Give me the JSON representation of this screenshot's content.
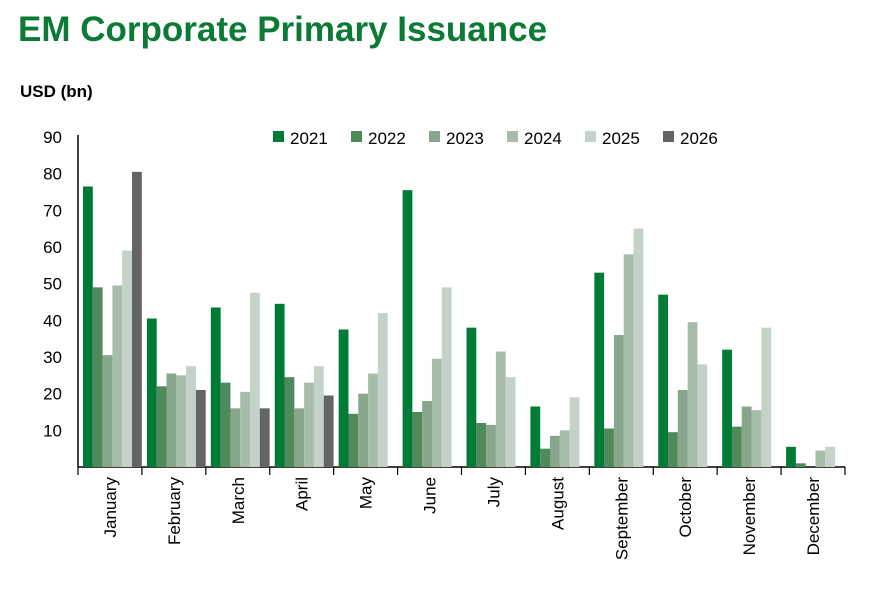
{
  "chart_data": {
    "type": "bar",
    "title": "EM Corporate Primary Issuance",
    "ylabel": "USD (bn)",
    "xlabel": "",
    "ylim": [
      0,
      90
    ],
    "yticks": [
      10,
      20,
      30,
      40,
      50,
      60,
      70,
      80,
      90
    ],
    "grid": false,
    "legend": "top",
    "categories": [
      "January",
      "February",
      "March",
      "April",
      "May",
      "June",
      "July",
      "August",
      "September",
      "October",
      "November",
      "December"
    ],
    "series": [
      {
        "name": "2021",
        "color": "#007A37",
        "values": [
          76.5,
          40.5,
          43.5,
          44.5,
          37.5,
          75.5,
          38,
          16.5,
          53,
          47,
          32,
          5.5
        ]
      },
      {
        "name": "2022",
        "color": "#4E8A5C",
        "values": [
          49,
          22,
          23,
          24.5,
          14.5,
          15,
          12,
          5,
          10.5,
          9.5,
          11,
          1
        ]
      },
      {
        "name": "2023",
        "color": "#87A68B",
        "values": [
          30.5,
          25.5,
          16,
          16,
          20,
          18,
          11.5,
          8.5,
          36,
          21,
          16.5,
          0
        ]
      },
      {
        "name": "2024",
        "color": "#A8BCAA",
        "values": [
          49.5,
          25,
          20.5,
          23,
          25.5,
          29.5,
          31.5,
          10,
          58,
          39.5,
          15.5,
          4.5
        ]
      },
      {
        "name": "2025",
        "color": "#C5D2C7",
        "values": [
          59,
          27.5,
          47.5,
          27.5,
          42,
          49,
          24.5,
          19,
          65,
          28,
          38,
          5.5
        ]
      },
      {
        "name": "2026",
        "color": "#646464",
        "values": [
          80.5,
          21,
          16,
          19.5,
          null,
          null,
          null,
          null,
          null,
          null,
          null,
          null
        ]
      }
    ]
  }
}
